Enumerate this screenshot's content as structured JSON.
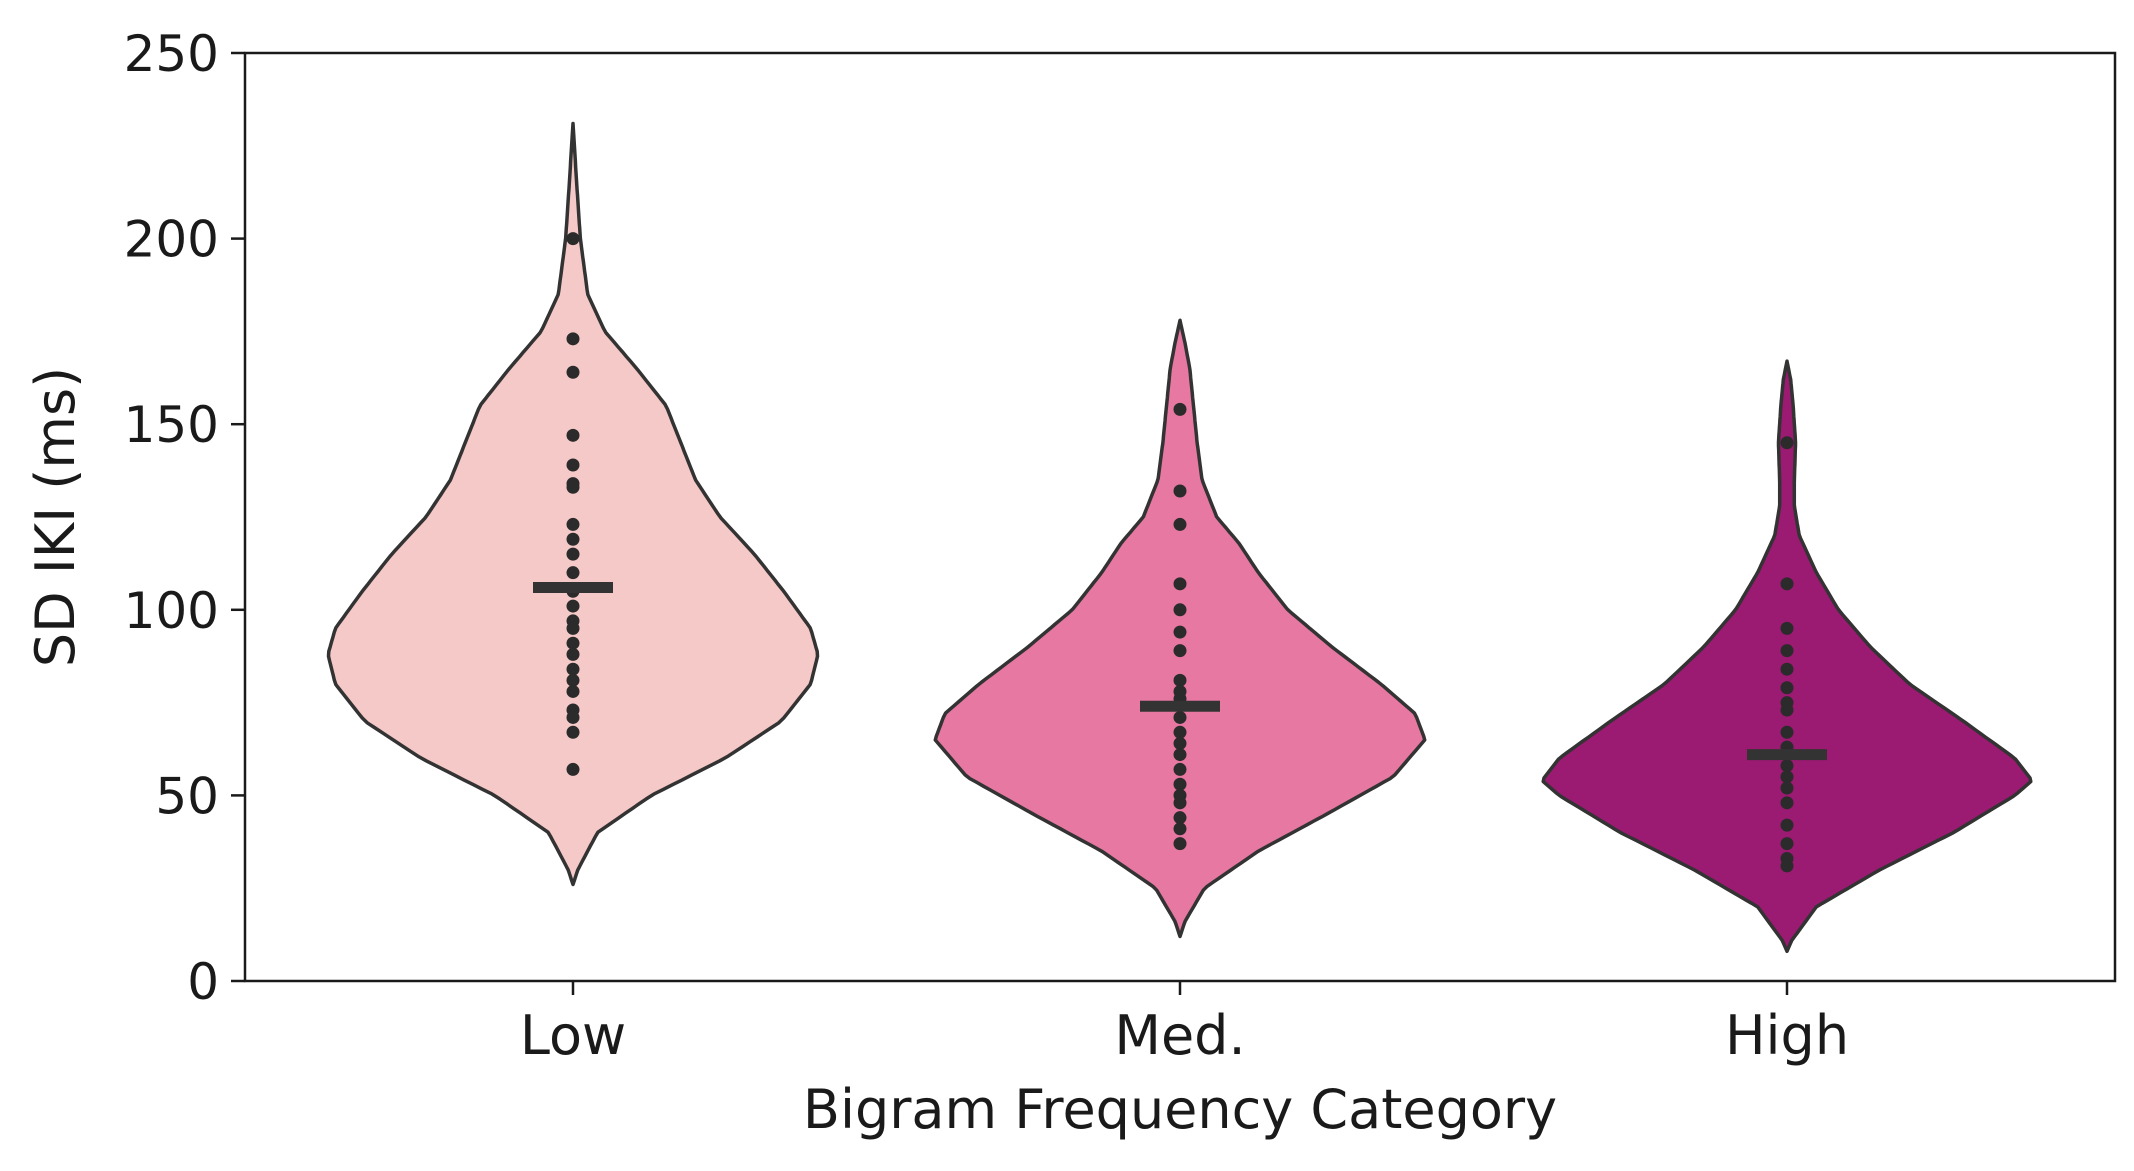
{
  "chart_data": {
    "type": "violin",
    "title": "",
    "xlabel": "Bigram Frequency Category",
    "ylabel": "SD IKI (ms)",
    "ylim": [
      0,
      250
    ],
    "yticks": [
      0,
      50,
      100,
      150,
      200,
      250
    ],
    "yticklabels": [
      "0",
      "50",
      "100",
      "150",
      "200",
      "250"
    ],
    "categories": [
      "Low",
      "Med.",
      "High"
    ],
    "grid": false,
    "legend": "none",
    "outline_color": "#333333",
    "point_color": "#2b2b2b",
    "series": [
      {
        "category": "Low",
        "color": "#f4c9c7",
        "mean": 106,
        "range": [
          26,
          231
        ],
        "density_profile": [
          [
            26,
            0.0
          ],
          [
            30,
            0.02
          ],
          [
            40,
            0.1
          ],
          [
            50,
            0.32
          ],
          [
            60,
            0.62
          ],
          [
            70,
            0.85
          ],
          [
            80,
            0.97
          ],
          [
            88,
            1.0
          ],
          [
            95,
            0.97
          ],
          [
            105,
            0.86
          ],
          [
            115,
            0.74
          ],
          [
            125,
            0.6
          ],
          [
            135,
            0.5
          ],
          [
            145,
            0.44
          ],
          [
            155,
            0.38
          ],
          [
            165,
            0.26
          ],
          [
            175,
            0.13
          ],
          [
            185,
            0.06
          ],
          [
            200,
            0.03
          ],
          [
            215,
            0.015
          ],
          [
            231,
            0.0
          ]
        ],
        "points": [
          200,
          173,
          164,
          147,
          139,
          134,
          133,
          123,
          119,
          115,
          110,
          105,
          101,
          97,
          95,
          91,
          88,
          84,
          81,
          78,
          73,
          71,
          67,
          57
        ]
      },
      {
        "category": "Med.",
        "color": "#e678a2",
        "mean": 74,
        "range": [
          12,
          178
        ],
        "density_profile": [
          [
            12,
            0.0
          ],
          [
            16,
            0.02
          ],
          [
            25,
            0.1
          ],
          [
            35,
            0.32
          ],
          [
            45,
            0.6
          ],
          [
            55,
            0.87
          ],
          [
            65,
            1.0
          ],
          [
            72,
            0.96
          ],
          [
            80,
            0.82
          ],
          [
            90,
            0.62
          ],
          [
            100,
            0.44
          ],
          [
            110,
            0.32
          ],
          [
            118,
            0.24
          ],
          [
            125,
            0.15
          ],
          [
            135,
            0.09
          ],
          [
            145,
            0.07
          ],
          [
            155,
            0.055
          ],
          [
            165,
            0.04
          ],
          [
            172,
            0.02
          ],
          [
            178,
            0.0
          ]
        ],
        "points": [
          154,
          132,
          123,
          107,
          100,
          94,
          89,
          81,
          78,
          76,
          71,
          67,
          64,
          61,
          57,
          53,
          50,
          48,
          44,
          41,
          37
        ]
      },
      {
        "category": "High",
        "color": "#9b1a72",
        "mean": 61,
        "range": [
          8,
          167
        ],
        "density_profile": [
          [
            8,
            0.0
          ],
          [
            11,
            0.02
          ],
          [
            20,
            0.12
          ],
          [
            30,
            0.38
          ],
          [
            40,
            0.68
          ],
          [
            50,
            0.93
          ],
          [
            54,
            1.0
          ],
          [
            60,
            0.93
          ],
          [
            70,
            0.72
          ],
          [
            80,
            0.5
          ],
          [
            90,
            0.34
          ],
          [
            100,
            0.21
          ],
          [
            110,
            0.12
          ],
          [
            120,
            0.05
          ],
          [
            128,
            0.03
          ],
          [
            135,
            0.03
          ],
          [
            145,
            0.035
          ],
          [
            155,
            0.025
          ],
          [
            162,
            0.015
          ],
          [
            167,
            0.0
          ]
        ],
        "points": [
          145,
          107,
          95,
          89,
          84,
          79,
          75,
          73,
          67,
          63,
          61,
          58,
          55,
          52,
          48,
          42,
          37,
          33,
          31
        ]
      }
    ]
  }
}
